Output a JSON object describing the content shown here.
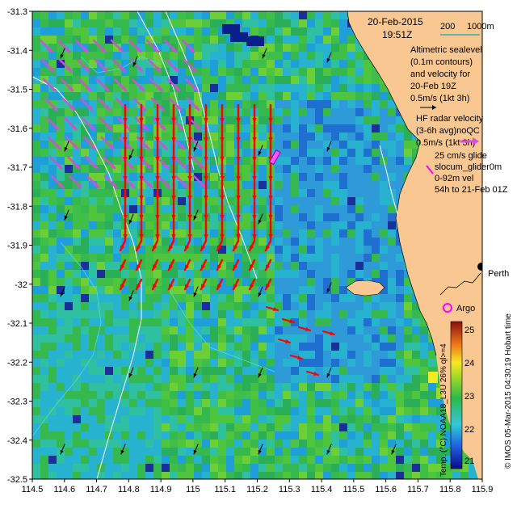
{
  "title": {
    "date": "20-Feb-2015",
    "time": "19:51Z"
  },
  "scale_bar": {
    "label_a": "200",
    "label_b": "1000m"
  },
  "legend": {
    "altimetric_lines": [
      "Altimetric sealevel",
      "(0.1m contours)",
      "and velocity for",
      "20-Feb 19Z",
      "0.5m/s (1kt 3h)"
    ],
    "hf_lines": [
      "HF radar velocity",
      "(3-6h avg)noQC",
      "0.5m/s (1kt 3h)"
    ],
    "glider_lines": [
      "25 cm/s glide",
      "slocum_glider0m",
      "0-92m vel",
      "54h to 21-Feb 01Z"
    ]
  },
  "places": {
    "perth": "Perth",
    "argo": "Argo"
  },
  "axes": {
    "x_ticks": [
      "114.5",
      "114.6",
      "114.7",
      "114.8",
      "114.9",
      "115",
      "115.1",
      "115.2",
      "115.3",
      "115.4",
      "115.5",
      "115.6",
      "115.7",
      "115.8",
      "115.9"
    ],
    "y_ticks": [
      "-31.3",
      "-31.4",
      "-31.5",
      "-31.6",
      "-31.7",
      "-31.8",
      "-31.9",
      "-32",
      "-32.1",
      "-32.2",
      "-32.3",
      "-32.4",
      "-32.5"
    ],
    "x_range": [
      114.5,
      115.9
    ],
    "y_range": [
      -32.5,
      -31.3
    ]
  },
  "colorbar": {
    "ticks": [
      "25",
      "24",
      "23",
      "22",
      "21"
    ],
    "range": [
      20.5,
      25.5
    ],
    "label": "Temp. (°C) NOAA18_L3U 26% ql>=4",
    "credit": "© IMOS 05-Mar-2015 04:30:19 Hobart time"
  },
  "colors": {
    "land": "#f9c792",
    "hf_arrow": "#ff0000",
    "alt_arrow": "#d94bdc",
    "glider": "#ff00ff",
    "contour": "#ffffff"
  }
}
